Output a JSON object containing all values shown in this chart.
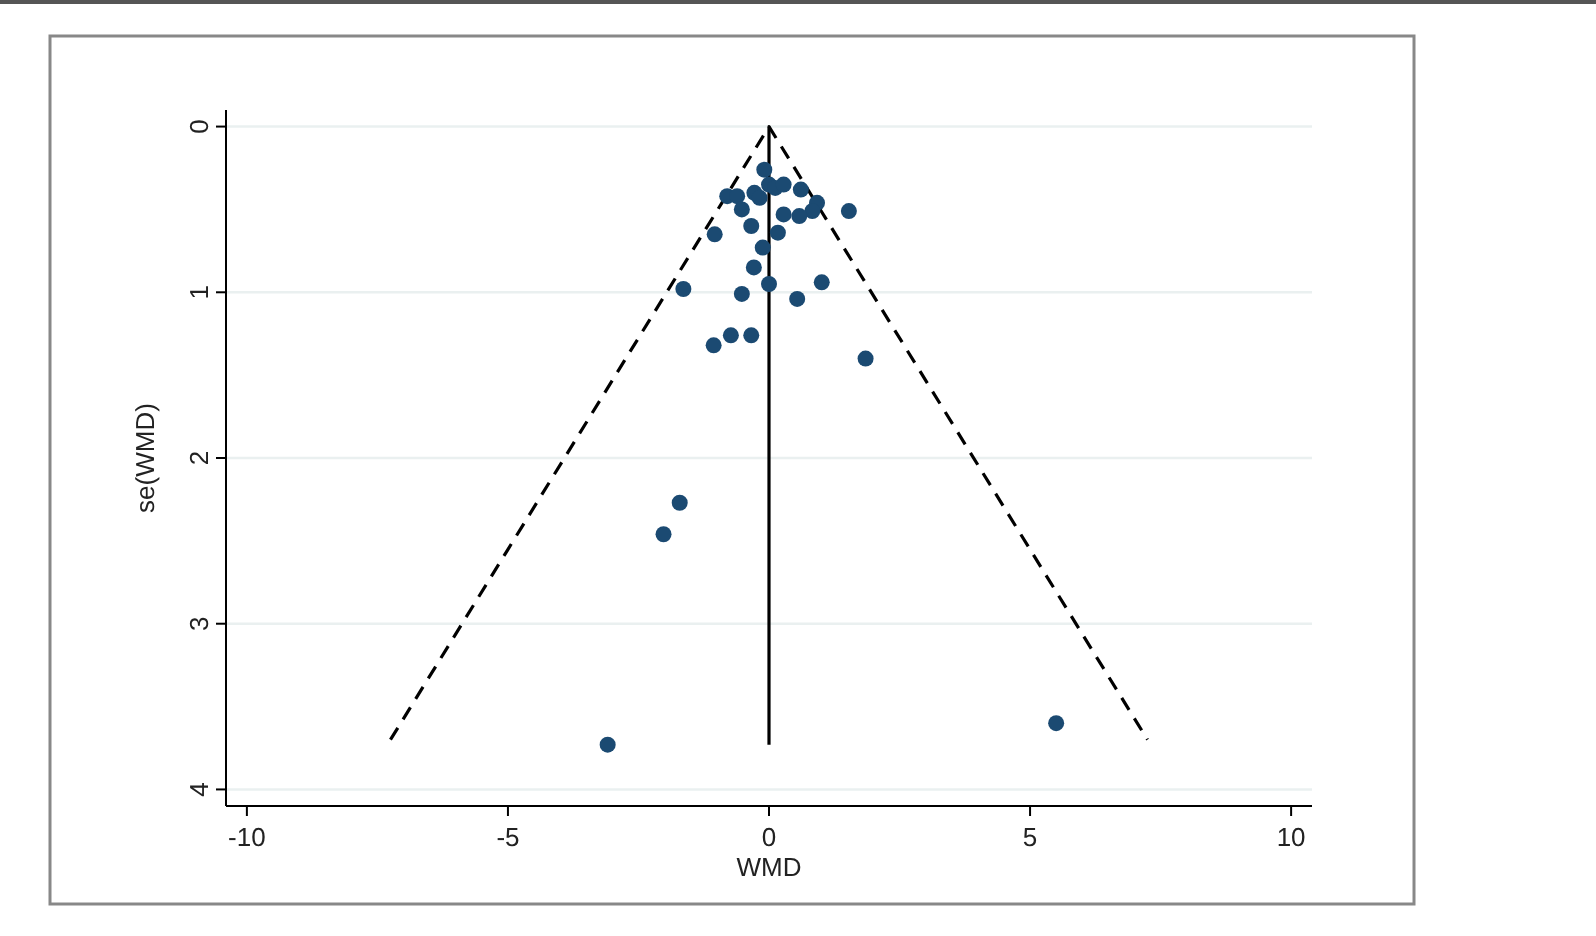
{
  "chart_data": {
    "type": "scatter",
    "xlabel": "WMD",
    "ylabel": "se(WMD)",
    "xlim": [
      -10.4,
      10.4
    ],
    "ylim": [
      4.1,
      -0.1
    ],
    "xticks": [
      -10,
      -5,
      0,
      5,
      10
    ],
    "yticks": [
      0,
      1,
      2,
      3,
      4
    ],
    "grid": "y",
    "series": [
      {
        "color": "#1b4a72",
        "marker": "circle",
        "x": [
          -0.09,
          0.0,
          0.12,
          0.28,
          0.61,
          -0.28,
          -0.18,
          -0.8,
          -0.61,
          0.92,
          0.83,
          1.53,
          -0.52,
          0.28,
          0.58,
          -0.34,
          -1.04,
          0.17,
          -0.12,
          -0.29,
          -1.64,
          -0.52,
          0.0,
          1.01,
          0.54,
          -0.73,
          -0.34,
          -1.06,
          1.85,
          -1.71,
          -2.02,
          -3.09,
          5.5
        ],
        "values": [
          0.26,
          0.35,
          0.37,
          0.35,
          0.38,
          0.4,
          0.43,
          0.42,
          0.42,
          0.46,
          0.51,
          0.51,
          0.5,
          0.53,
          0.54,
          0.6,
          0.65,
          0.64,
          0.73,
          0.85,
          0.98,
          1.01,
          0.95,
          0.94,
          1.04,
          1.26,
          1.26,
          1.32,
          1.4,
          2.27,
          2.46,
          3.73,
          3.6
        ]
      },
      {
        "type": "line",
        "color": "#000000",
        "line_style": "dashed",
        "marker": "none",
        "x": [
          -7.25,
          0,
          7.25
        ],
        "values": [
          3.7,
          0,
          3.7
        ]
      },
      {
        "type": "line",
        "color": "#000000",
        "line_style": "solid",
        "marker": "none",
        "x": [
          0,
          0
        ],
        "values": [
          0,
          3.73
        ]
      }
    ]
  }
}
